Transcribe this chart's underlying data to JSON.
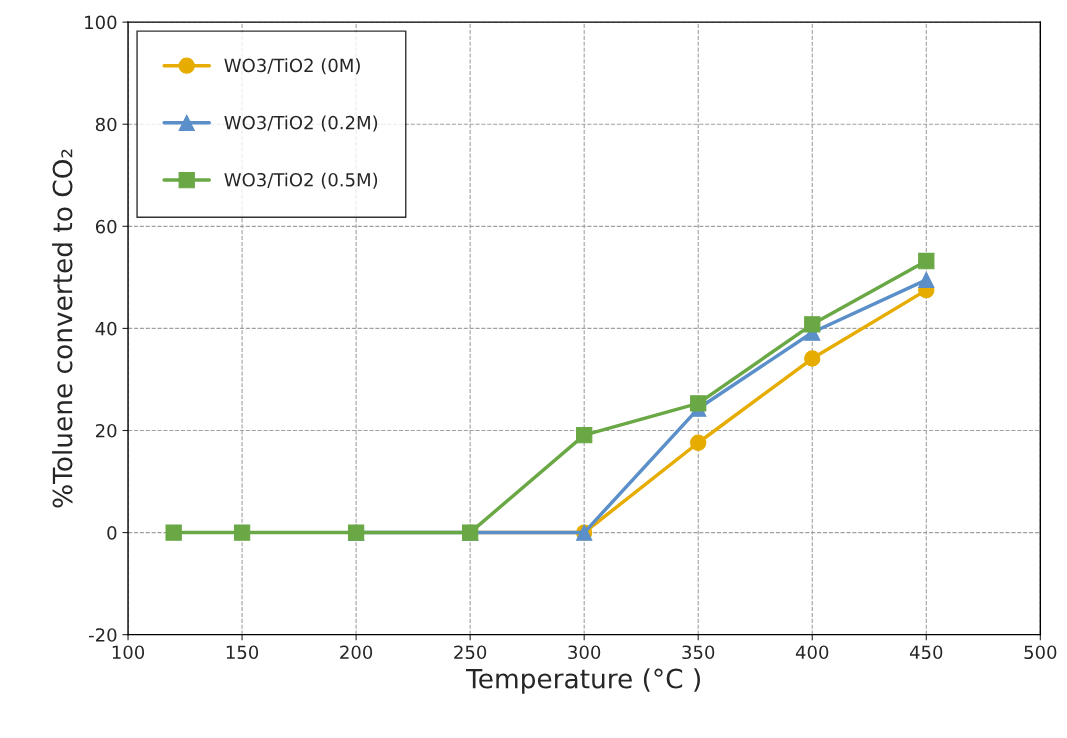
{
  "chart_data": {
    "type": "line",
    "xlabel": "Temperature (°C )",
    "ylabel": "%Toluene converted to CO₂",
    "x": [
      120,
      150,
      200,
      250,
      300,
      350,
      400,
      450
    ],
    "series": [
      {
        "name": "WO3/TiO2 (0M)",
        "color": "#e6ac00",
        "marker": "circle",
        "values": [
          null,
          null,
          null,
          0,
          0,
          17.6,
          34.1,
          47.5
        ]
      },
      {
        "name": "WO3/TiO2 (0.2M)",
        "color": "#5b8fc9",
        "marker": "triangle",
        "values": [
          null,
          null,
          0,
          0,
          0,
          24.3,
          39.2,
          49.5
        ]
      },
      {
        "name": "WO3/TiO2 (0.5M)",
        "color": "#6aa846",
        "marker": "square",
        "values": [
          0,
          0,
          0,
          0,
          19.1,
          25.3,
          40.8,
          53.2
        ]
      }
    ],
    "xlim": [
      100,
      500
    ],
    "xticks": [
      100,
      150,
      200,
      250,
      300,
      350,
      400,
      450,
      500
    ],
    "ylim": [
      -20,
      100
    ],
    "yticks": [
      -20,
      0,
      20,
      40,
      60,
      80,
      100
    ],
    "grid": true,
    "legend": "top left",
    "line_style": "solid"
  }
}
